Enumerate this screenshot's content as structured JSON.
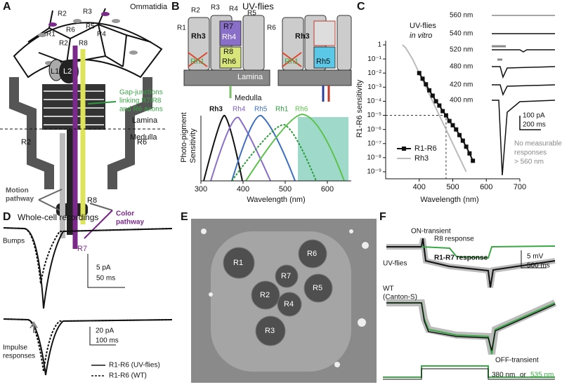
{
  "panel_a": {
    "letter": "A",
    "ommatidia": "Ommatidia",
    "cell_labels": [
      "R2",
      "R3",
      "R5",
      "R1",
      "R6",
      "R4",
      "R2",
      "R8"
    ],
    "l1": "L1",
    "l2": "L2",
    "r2": "R2",
    "r6": "R6",
    "lamina": "Lamina",
    "medulla": "Medulla",
    "r8": "R8",
    "r7": "R7",
    "gap_junctions": [
      "Gap-junctions",
      "linking R7/R8",
      "and R6 axons"
    ],
    "motion_pathway": [
      "Motion",
      "pathway"
    ],
    "color_pathway": [
      "Color",
      "pathway"
    ]
  },
  "panel_b": {
    "letter": "B",
    "title": "UV-flies",
    "cell_labels": [
      "R2",
      "R3",
      "R4",
      "R5",
      "R1",
      "R6"
    ],
    "left_rh": [
      "Rh3",
      "R7",
      "Rh4",
      "R8",
      "Rh6",
      "Rh1"
    ],
    "right_rh": [
      "Rh3",
      "Rh1",
      "Rh5"
    ],
    "lamina": "Lamina",
    "medulla": "Medulla",
    "curve_labels": [
      "Rh3",
      "Rh4",
      "Rh5",
      "Rh1",
      "Rh6"
    ],
    "ylabel": [
      "Photo-pigment",
      "Sensitivity"
    ],
    "xlabel": "Wavelength (nm)",
    "xlim": [
      300,
      650
    ],
    "xticks": [
      300,
      400,
      500,
      600
    ]
  },
  "chart_data": {
    "type": "line",
    "letter": "C",
    "title": "UV-flies",
    "subtitle": "in vitro",
    "ylabel": "R1-R6 sensitivity",
    "xlabel": "Wavelength (nm)",
    "log_y": true,
    "xlim": [
      300,
      700
    ],
    "xticks": [
      400,
      500,
      600,
      700
    ],
    "ylim": [
      1e-09,
      1
    ],
    "yticks": [
      {
        "value": 1,
        "label": "1"
      },
      {
        "value": 0.1,
        "label": "10⁻¹"
      },
      {
        "value": 0.01,
        "label": "10⁻²"
      },
      {
        "value": 0.001,
        "label": "10⁻³"
      },
      {
        "value": 0.0001,
        "label": "10⁻⁴"
      },
      {
        "value": 1e-05,
        "label": "10⁻⁵"
      },
      {
        "value": 1e-06,
        "label": "10⁻⁶"
      },
      {
        "value": 1e-07,
        "label": "10⁻⁷"
      },
      {
        "value": 1e-08,
        "label": "10⁻⁸"
      },
      {
        "value": 1e-09,
        "label": "10⁻⁹"
      }
    ],
    "ref_x": 480,
    "ref_y": 1e-05,
    "series": [
      {
        "name": "R1-R6",
        "color": "#111111",
        "x": [
          400,
          410,
          420,
          430,
          440,
          450,
          460,
          470,
          480,
          490,
          500,
          510,
          520,
          530,
          540,
          550,
          560
        ],
        "values": [
          0.01,
          0.004,
          0.0016,
          0.0006,
          0.00025,
          0.0001,
          5e-05,
          2e-05,
          1e-05,
          4e-06,
          2e-06,
          1e-06,
          4e-07,
          1.6e-07,
          6e-08,
          2e-08,
          6e-09
        ]
      },
      {
        "name": "Rh3",
        "color": "#bbbbbb",
        "x": [
          350,
          360,
          380,
          400,
          420,
          440,
          460,
          480,
          500,
          520,
          540
        ],
        "values": [
          1,
          0.6,
          0.1,
          0.01,
          0.001,
          0.0001,
          1e-05,
          1e-06,
          1e-07,
          1e-08,
          1e-09
        ]
      }
    ],
    "trace_labels": [
      "560 nm",
      "540 nm",
      "520 nm",
      "480 nm",
      "420 nm",
      "400 nm"
    ],
    "scale_y": "100 pA",
    "scale_x": "200 ms",
    "note": [
      "No measurable",
      "responses",
      "> 560 nm"
    ]
  },
  "panel_d": {
    "letter": "D",
    "title": "Whole-cell recordings",
    "bumps": "Bumps",
    "bump_scale": [
      "5 pA",
      "50 ms"
    ],
    "impulse": [
      "Impulse",
      "responses"
    ],
    "impulse_scale": [
      "20 pA",
      "100 ms"
    ],
    "legend": [
      "R1-R6 (UV-flies)",
      "R1-R6 (WT)"
    ]
  },
  "panel_e": {
    "letter": "E",
    "cells": [
      "R1",
      "R6",
      "R7",
      "R2",
      "R5",
      "R4",
      "R3"
    ]
  },
  "panel_f": {
    "letter": "F",
    "on": "ON-transient",
    "r8": "R8 response",
    "uv": "UV-flies",
    "r17": "R1-R7 response",
    "scale": [
      "5 mV",
      "500 ms"
    ],
    "wt": [
      "WT",
      "(Canton-S)"
    ],
    "off": "OFF-transient",
    "stim": [
      "380 nm",
      "or",
      "535 nm"
    ]
  }
}
